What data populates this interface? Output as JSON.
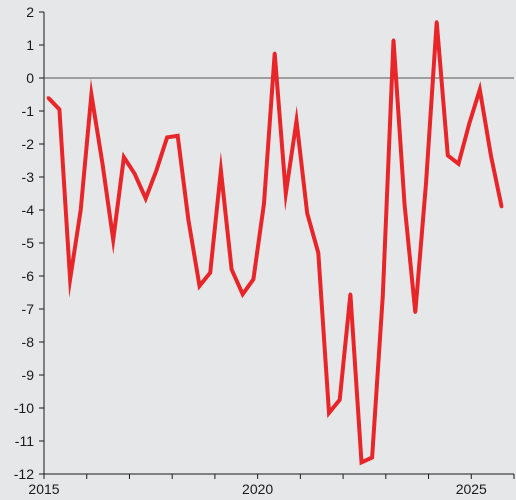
{
  "chart_data": {
    "type": "line",
    "title": "",
    "xlabel": "",
    "ylabel": "",
    "xlim": [
      2015.0,
      2026.0
    ],
    "ylim": [
      -12,
      2
    ],
    "y_ticks": [
      2,
      1,
      0,
      -1,
      -2,
      -3,
      -4,
      -5,
      -6,
      -7,
      -8,
      -9,
      -10,
      -11,
      -12
    ],
    "x_tick_labels": [
      {
        "label": "2015",
        "value": 2015.0
      },
      {
        "label": "2020",
        "value": 2020.0
      },
      {
        "label": "2025",
        "value": 2025.0
      }
    ],
    "x_minor_ticks": [
      2016,
      2017,
      2018,
      2019,
      2021,
      2022,
      2023,
      2024,
      2026
    ],
    "zero_line": true,
    "grid": false,
    "legend": "none",
    "series": [
      {
        "color": "#e8262a",
        "x": [
          2015.1,
          2015.36,
          2015.61,
          2015.86,
          2016.11,
          2016.37,
          2016.62,
          2016.87,
          2017.12,
          2017.38,
          2017.63,
          2017.88,
          2018.13,
          2018.38,
          2018.64,
          2018.89,
          2019.14,
          2019.39,
          2019.65,
          2019.9,
          2020.15,
          2020.4,
          2020.66,
          2020.91,
          2021.16,
          2021.42,
          2021.67,
          2021.92,
          2022.17,
          2022.43,
          2022.68,
          2022.93,
          2023.18,
          2023.44,
          2023.69,
          2023.94,
          2024.19,
          2024.45,
          2024.7,
          2024.95,
          2025.2,
          2025.46,
          2025.71
        ],
        "y": [
          -0.6,
          -0.95,
          -6.1,
          -4.0,
          -0.5,
          -2.6,
          -4.9,
          -2.4,
          -2.9,
          -3.65,
          -2.8,
          -1.8,
          -1.75,
          -4.3,
          -6.3,
          -5.9,
          -2.8,
          -5.8,
          -6.55,
          -6.1,
          -3.8,
          0.75,
          -3.5,
          -1.3,
          -4.1,
          -5.3,
          -10.15,
          -9.75,
          -6.55,
          -11.65,
          -11.5,
          -6.6,
          1.15,
          -3.85,
          -7.1,
          -3.2,
          1.7,
          -2.35,
          -2.6,
          -1.4,
          -0.35,
          -2.35,
          -3.9
        ]
      }
    ]
  }
}
